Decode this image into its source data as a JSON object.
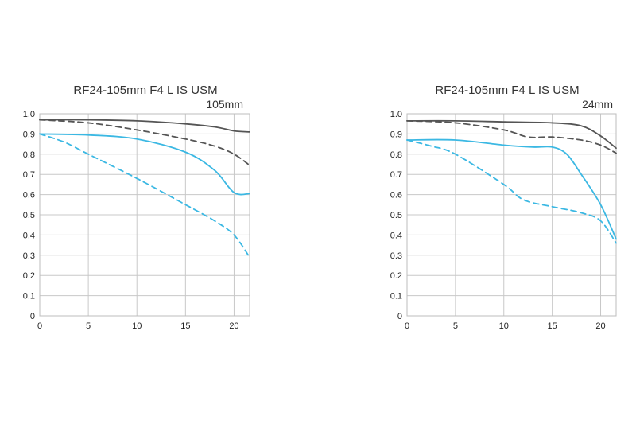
{
  "chart_data": [
    {
      "type": "line",
      "title": "RF24-105mm F4 L IS USM",
      "focal_length": "105mm",
      "xlabel": "",
      "ylabel": "",
      "xlim": [
        0,
        21.6
      ],
      "ylim": [
        0,
        1.0
      ],
      "x_ticks": [
        0,
        5,
        10,
        15,
        20
      ],
      "y_ticks": [
        "0",
        "0.1",
        "0.2",
        "0.3",
        "0.4",
        "0.5",
        "0.6",
        "0.7",
        "0.8",
        "0.9",
        "1.0"
      ],
      "grid": true,
      "legend": "none",
      "series": [
        {
          "color": "#555555",
          "dashed": false,
          "points": [
            [
              0,
              0.97
            ],
            [
              5,
              0.97
            ],
            [
              10,
              0.965
            ],
            [
              15,
              0.95
            ],
            [
              18,
              0.935
            ],
            [
              20,
              0.915
            ],
            [
              21.6,
              0.91
            ]
          ]
        },
        {
          "color": "#555555",
          "dashed": true,
          "points": [
            [
              0,
              0.97
            ],
            [
              5,
              0.955
            ],
            [
              10,
              0.92
            ],
            [
              15,
              0.875
            ],
            [
              18,
              0.84
            ],
            [
              20,
              0.8
            ],
            [
              21.6,
              0.745
            ]
          ]
        },
        {
          "color": "#3bb8e3",
          "dashed": false,
          "points": [
            [
              0,
              0.9
            ],
            [
              5,
              0.895
            ],
            [
              10,
              0.875
            ],
            [
              15,
              0.81
            ],
            [
              18,
              0.72
            ],
            [
              20,
              0.61
            ],
            [
              21.6,
              0.605
            ]
          ]
        },
        {
          "color": "#3bb8e3",
          "dashed": true,
          "points": [
            [
              0,
              0.9
            ],
            [
              2.5,
              0.86
            ],
            [
              5,
              0.8
            ],
            [
              10,
              0.68
            ],
            [
              15,
              0.55
            ],
            [
              18,
              0.47
            ],
            [
              20,
              0.4
            ],
            [
              21.6,
              0.29
            ]
          ]
        }
      ]
    },
    {
      "type": "line",
      "title": "RF24-105mm F4 L IS USM",
      "focal_length": "24mm",
      "xlabel": "",
      "ylabel": "",
      "xlim": [
        0,
        21.6
      ],
      "ylim": [
        0,
        1.0
      ],
      "x_ticks": [
        0,
        5,
        10,
        15,
        20
      ],
      "y_ticks": [
        "0",
        "0.1",
        "0.2",
        "0.3",
        "0.4",
        "0.5",
        "0.6",
        "0.7",
        "0.8",
        "0.9",
        "1.0"
      ],
      "grid": true,
      "legend": "none",
      "series": [
        {
          "color": "#555555",
          "dashed": false,
          "points": [
            [
              0,
              0.965
            ],
            [
              5,
              0.965
            ],
            [
              10,
              0.96
            ],
            [
              15,
              0.955
            ],
            [
              18,
              0.94
            ],
            [
              20,
              0.89
            ],
            [
              21.6,
              0.83
            ]
          ]
        },
        {
          "color": "#555555",
          "dashed": true,
          "points": [
            [
              0,
              0.965
            ],
            [
              5,
              0.955
            ],
            [
              10,
              0.92
            ],
            [
              12.5,
              0.885
            ],
            [
              15,
              0.885
            ],
            [
              18,
              0.87
            ],
            [
              20,
              0.845
            ],
            [
              21.6,
              0.805
            ]
          ]
        },
        {
          "color": "#3bb8e3",
          "dashed": false,
          "points": [
            [
              0,
              0.87
            ],
            [
              5,
              0.87
            ],
            [
              10,
              0.845
            ],
            [
              13,
              0.835
            ],
            [
              15,
              0.835
            ],
            [
              16.5,
              0.8
            ],
            [
              18,
              0.7
            ],
            [
              20,
              0.55
            ],
            [
              21.6,
              0.38
            ]
          ]
        },
        {
          "color": "#3bb8e3",
          "dashed": true,
          "points": [
            [
              0,
              0.87
            ],
            [
              2.5,
              0.84
            ],
            [
              5,
              0.8
            ],
            [
              10,
              0.65
            ],
            [
              12,
              0.575
            ],
            [
              15,
              0.54
            ],
            [
              18,
              0.51
            ],
            [
              20,
              0.47
            ],
            [
              21.6,
              0.36
            ]
          ]
        }
      ]
    }
  ]
}
